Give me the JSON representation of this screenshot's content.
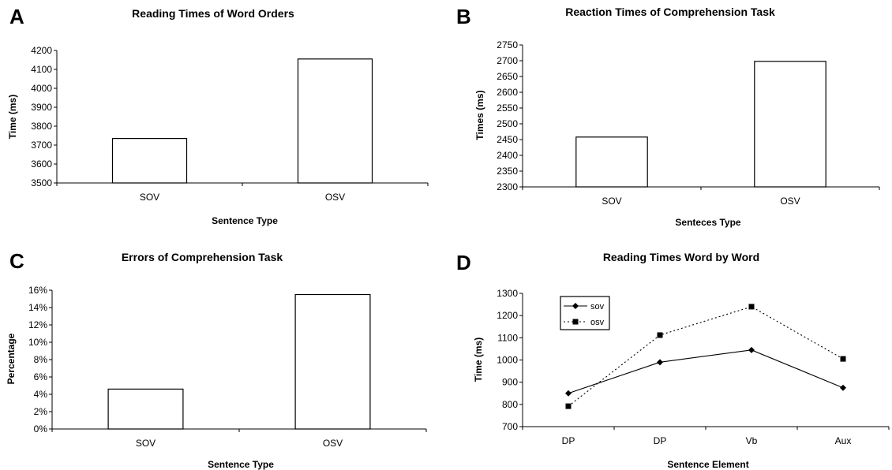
{
  "chart_data": [
    {
      "panel": "A",
      "type": "bar",
      "title": "Reading Times of Word Orders",
      "xlabel": "Sentence Type",
      "ylabel": "Time (ms)",
      "categories": [
        "SOV",
        "OSV"
      ],
      "values": [
        3735,
        4155
      ],
      "ylim": [
        3500,
        4200
      ],
      "yticks": [
        "3500",
        "3600",
        "3700",
        "3800",
        "3900",
        "4000",
        "4100",
        "4200"
      ],
      "grid": false
    },
    {
      "panel": "B",
      "type": "bar",
      "title": "Reaction Times of Comprehension Task",
      "xlabel": "Senteces Type",
      "ylabel": "Times (ms)",
      "categories": [
        "SOV",
        "OSV"
      ],
      "values": [
        2458,
        2698
      ],
      "ylim": [
        2300,
        2750
      ],
      "yticks": [
        "2300",
        "2350",
        "2400",
        "2450",
        "2500",
        "2550",
        "2600",
        "2650",
        "2700",
        "2750"
      ],
      "grid": false
    },
    {
      "panel": "C",
      "type": "bar",
      "title": "Errors of Comprehension Task",
      "xlabel": "Sentence Type",
      "ylabel": "Percentage",
      "categories": [
        "SOV",
        "OSV"
      ],
      "values": [
        4.6,
        15.5
      ],
      "ylim": [
        0,
        16
      ],
      "yticks": [
        "0%",
        "2%",
        "4%",
        "6%",
        "8%",
        "10%",
        "12%",
        "14%",
        "16%"
      ],
      "grid": false
    },
    {
      "panel": "D",
      "type": "line",
      "title": "Reading Times Word by Word",
      "xlabel": "Sentence Element",
      "ylabel": "Time (ms)",
      "categories": [
        "DP",
        "DP",
        "Vb",
        "Aux"
      ],
      "series": [
        {
          "name": "sov",
          "values": [
            850,
            990,
            1045,
            875
          ],
          "marker": "diamond",
          "line": "solid"
        },
        {
          "name": "osv",
          "values": [
            792,
            1112,
            1240,
            1005
          ],
          "marker": "square",
          "line": "dotted"
        }
      ],
      "ylim": [
        700,
        1300
      ],
      "yticks": [
        "700",
        "800",
        "900",
        "1000",
        "1100",
        "1200",
        "1300"
      ],
      "legend": "top-left",
      "grid": false
    }
  ]
}
